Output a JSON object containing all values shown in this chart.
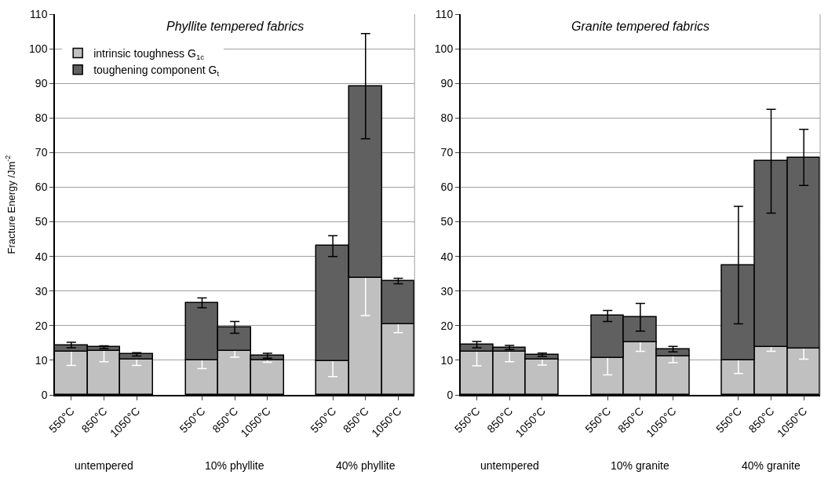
{
  "chart_data": [
    {
      "type": "bar",
      "stacked": true,
      "title": "Phyllite tempered fabrics",
      "ylabel": "Fracture Energy /Jm$^{-2}$",
      "categories": [
        "550°C",
        "850°C",
        "1050°C",
        null,
        "550°C",
        "850°C",
        "1050°C",
        null,
        "550°C",
        "850°C",
        "1050°C"
      ],
      "series": [
        {
          "name": "intrinsic toughness G$_{1c}$",
          "color": "#c0c0c0",
          "values": [
            12.4,
            12.6,
            10.3,
            null,
            10.0,
            12.6,
            9.9,
            null,
            9.7,
            33.8,
            20.4
          ],
          "errors": [
            3.9,
            3.0,
            1.8,
            null,
            2.4,
            1.7,
            0.5,
            null,
            4.4,
            10.9,
            2.4
          ]
        },
        {
          "name": "toughening component G$_{t}$",
          "color": "#606060",
          "values": [
            2.0,
            1.2,
            1.4,
            null,
            16.6,
            6.9,
            1.4,
            null,
            33.3,
            55.4,
            12.5
          ],
          "errors": [
            0.8,
            0.4,
            0.5,
            null,
            1.4,
            1.7,
            0.7,
            null,
            3.0,
            15.2,
            0.8
          ]
        }
      ],
      "ylim": [
        0,
        110
      ],
      "yticks": [
        0,
        10,
        20,
        30,
        40,
        50,
        60,
        70,
        80,
        90,
        100,
        110
      ],
      "grid": "y",
      "legend": "top left",
      "annotations": [
        "untempered",
        "10% phyllite",
        "40% phyllite"
      ]
    },
    {
      "type": "bar",
      "stacked": true,
      "title": "Granite tempered fabrics",
      "categories": [
        "550°C",
        "850°C",
        "1050°C",
        null,
        "550°C",
        "850°C",
        "1050°C",
        null,
        "550°C",
        "850°C",
        "1050°C"
      ],
      "series": [
        {
          "color": "#c0c0c0",
          "values": [
            12.4,
            12.4,
            10.2,
            null,
            10.6,
            15.2,
            11.1,
            null,
            10.0,
            13.8,
            13.3
          ],
          "errors": [
            4.0,
            2.8,
            1.6,
            null,
            4.8,
            2.6,
            1.8,
            null,
            3.8,
            1.2,
            3.0
          ]
        },
        {
          "color": "#606060",
          "values": [
            2.1,
            1.3,
            1.4,
            null,
            12.2,
            7.2,
            2.1,
            null,
            27.5,
            53.7,
            55.3
          ],
          "errors": [
            0.9,
            0.6,
            0.5,
            null,
            1.6,
            4.0,
            0.8,
            null,
            17.0,
            15.0,
            8.1
          ]
        }
      ],
      "ylim": [
        0,
        110
      ],
      "yticks": [
        0,
        10,
        20,
        30,
        40,
        50,
        60,
        70,
        80,
        90,
        100,
        110
      ],
      "grid": "y",
      "legend": false,
      "annotations": [
        "untempered",
        "10% granite",
        "40% granite"
      ]
    }
  ]
}
